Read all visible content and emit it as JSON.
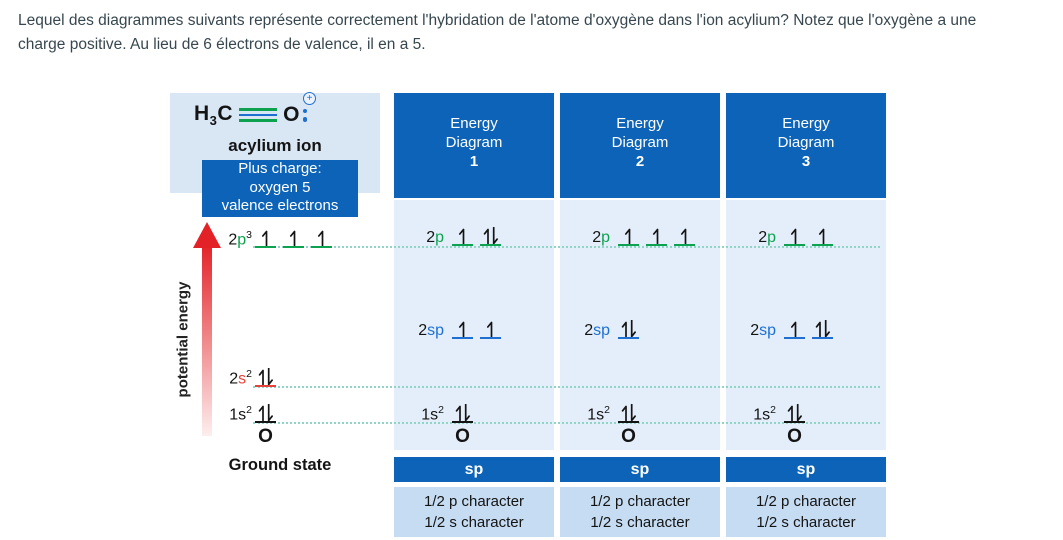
{
  "question": {
    "lines": [
      "Lequel des diagrammes suivants représente correctement l'hybridation de l'atome d'oxygène dans l'ion acylium? Notez que l'oxygène a une",
      "charge positive. Au lieu de 6 électrons de valence, il en a 5."
    ]
  },
  "colors": {
    "header_blue": "#0c63b7",
    "panel_light": "#d9e7f5",
    "body_light": "#e4eefa",
    "char_box": "#c6dcf2",
    "green": "#0ca24f",
    "blue": "#1e6fd2",
    "red": "#e8403a",
    "dotted": "#8fd4c5",
    "arrow_red": "#e32227",
    "text_dark": "#37474f"
  },
  "molecule": {
    "formula": [
      {
        "t": "H"
      },
      {
        "t": "3",
        "sub": true
      },
      {
        "t": "C"
      }
    ],
    "bond": "triple",
    "atom": "O",
    "charge_symbol": "+",
    "lone_pair_dots": 2,
    "caption": "acylium ion",
    "note_lines": [
      "Plus charge:",
      "oxygen 5",
      "valence electrons"
    ]
  },
  "ground_state": {
    "axis_label": "potential energy",
    "caption": "Ground state",
    "atom": "O",
    "levels": [
      {
        "id": "p",
        "label": [
          {
            "t": "2"
          },
          {
            "t": "p",
            "c": "green"
          },
          {
            "t": "3",
            "sup": true
          }
        ],
        "line": "green",
        "orbitals": [
          "up",
          "up",
          "up"
        ]
      },
      {
        "id": "s2",
        "label": [
          {
            "t": "2"
          },
          {
            "t": "s",
            "c": "red"
          },
          {
            "t": "2",
            "sup": true
          }
        ],
        "line": "red",
        "orbitals": [
          "pair"
        ]
      },
      {
        "id": "s1",
        "label": [
          {
            "t": "1"
          },
          {
            "t": "s"
          },
          {
            "t": "2",
            "sup": true
          }
        ],
        "line": "black",
        "orbitals": [
          "pair"
        ]
      }
    ]
  },
  "diagrams": [
    {
      "title_lines": [
        "Energy",
        "Diagram"
      ],
      "number": "1",
      "levels": [
        {
          "id": "p",
          "label": [
            {
              "t": "2"
            },
            {
              "t": "p",
              "c": "green"
            }
          ],
          "line": "green",
          "orbitals": [
            "up",
            "pair"
          ]
        },
        {
          "id": "sp",
          "label": [
            {
              "t": "2"
            },
            {
              "t": "sp",
              "c": "blue"
            }
          ],
          "line": "blue",
          "orbitals": [
            "up",
            "up"
          ]
        },
        {
          "id": "s1",
          "label": [
            {
              "t": "1"
            },
            {
              "t": "s"
            },
            {
              "t": "2",
              "sup": true
            }
          ],
          "line": "black",
          "orbitals": [
            "pair"
          ]
        }
      ],
      "atom": "O",
      "hybrid": "sp",
      "character_lines": [
        "1/2 p character",
        "1/2 s character"
      ]
    },
    {
      "title_lines": [
        "Energy",
        "Diagram"
      ],
      "number": "2",
      "levels": [
        {
          "id": "p",
          "label": [
            {
              "t": "2"
            },
            {
              "t": "p",
              "c": "green"
            }
          ],
          "line": "green",
          "orbitals": [
            "up",
            "up",
            "up"
          ]
        },
        {
          "id": "sp",
          "label": [
            {
              "t": "2"
            },
            {
              "t": "sp",
              "c": "blue"
            }
          ],
          "line": "blue",
          "orbitals": [
            "pair"
          ]
        },
        {
          "id": "s1",
          "label": [
            {
              "t": "1"
            },
            {
              "t": "s"
            },
            {
              "t": "2",
              "sup": true
            }
          ],
          "line": "black",
          "orbitals": [
            "pair"
          ]
        }
      ],
      "atom": "O",
      "hybrid": "sp",
      "character_lines": [
        "1/2 p character",
        "1/2 s character"
      ]
    },
    {
      "title_lines": [
        "Energy",
        "Diagram"
      ],
      "number": "3",
      "levels": [
        {
          "id": "p",
          "label": [
            {
              "t": "2"
            },
            {
              "t": "p",
              "c": "green"
            }
          ],
          "line": "green",
          "orbitals": [
            "up",
            "up"
          ]
        },
        {
          "id": "sp",
          "label": [
            {
              "t": "2"
            },
            {
              "t": "sp",
              "c": "blue"
            }
          ],
          "line": "blue",
          "orbitals": [
            "up",
            "pair"
          ]
        },
        {
          "id": "s1",
          "label": [
            {
              "t": "1"
            },
            {
              "t": "s"
            },
            {
              "t": "2",
              "sup": true
            }
          ],
          "line": "black",
          "orbitals": [
            "pair"
          ]
        }
      ],
      "atom": "O",
      "hybrid": "sp",
      "character_lines": [
        "1/2 p character",
        "1/2 s character"
      ]
    }
  ]
}
